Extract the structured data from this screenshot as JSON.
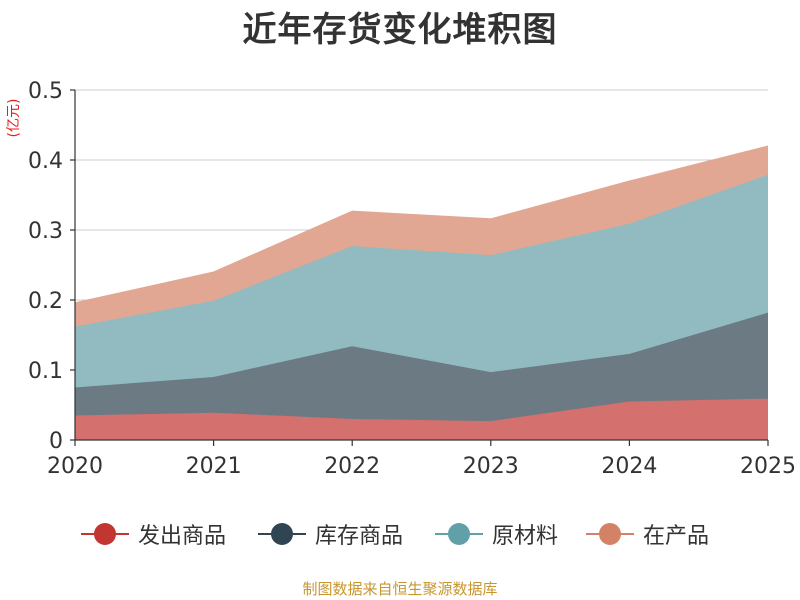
{
  "chart_data": {
    "type": "area",
    "stacked": true,
    "title": "近年存货变化堆积图",
    "unit_label": "(亿元)",
    "x": [
      "2020",
      "2021",
      "2022",
      "2023",
      "2024",
      "2025"
    ],
    "series": [
      {
        "name": "发出商品",
        "color": "#c23531",
        "fill": "#d4706d",
        "values": [
          0.035,
          0.039,
          0.03,
          0.027,
          0.055,
          0.059
        ]
      },
      {
        "name": "库存商品",
        "color": "#2f4554",
        "fill": "#6c7a84",
        "values": [
          0.04,
          0.051,
          0.104,
          0.07,
          0.068,
          0.123
        ]
      },
      {
        "name": "原材料",
        "color": "#61a0a8",
        "fill": "#91bbc1",
        "values": [
          0.087,
          0.109,
          0.143,
          0.167,
          0.186,
          0.197
        ]
      },
      {
        "name": "在产品",
        "color": "#d48265",
        "fill": "#e1a792",
        "values": [
          0.034,
          0.041,
          0.05,
          0.052,
          0.061,
          0.041
        ]
      }
    ],
    "ylim": [
      0,
      0.5
    ],
    "yticks": [
      "0",
      "0.1",
      "0.2",
      "0.3",
      "0.4",
      "0.5"
    ],
    "grid": true,
    "legend_position": "bottom"
  },
  "styles": {
    "unit_color": "#e02020",
    "source_color": "#c8962f",
    "grid_color": "#cccccc",
    "axis_color": "#333333"
  },
  "source_text": "制图数据来自恒生聚源数据库"
}
